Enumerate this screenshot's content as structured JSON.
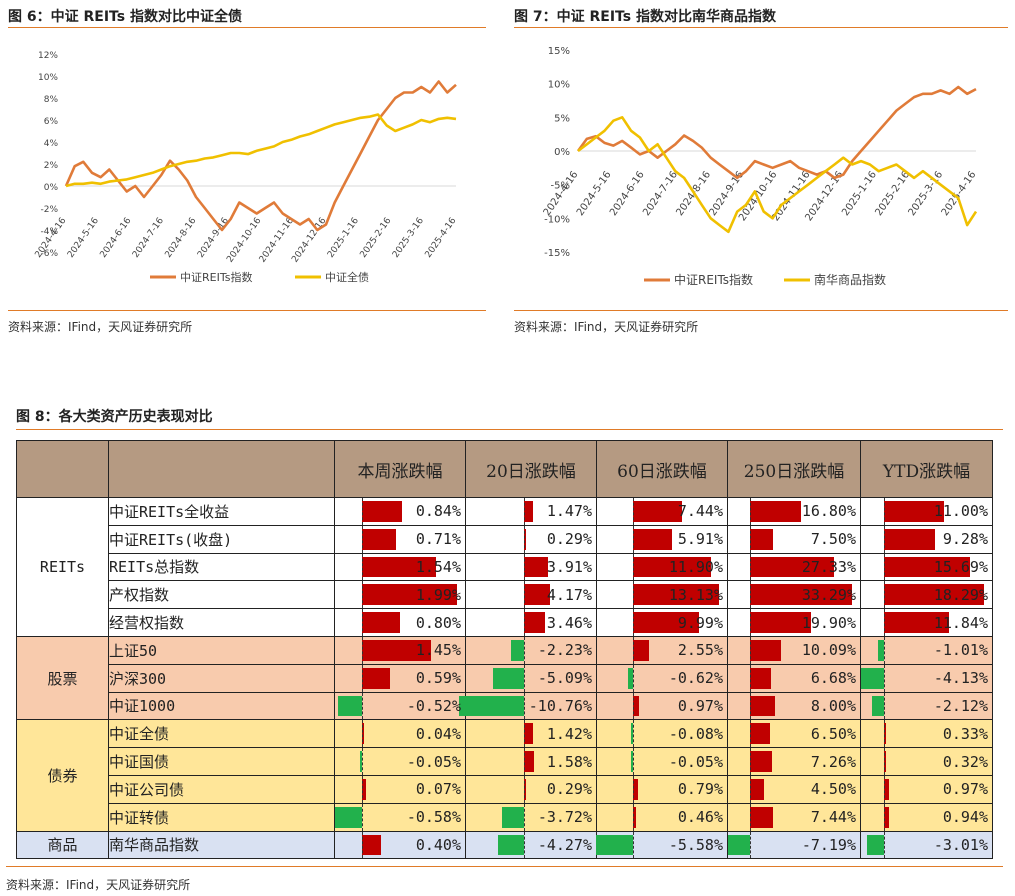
{
  "figure6": {
    "caption": "图 6：中证 REITs 指数对比中证全债",
    "source": "资料来源：IFind，天风证券研究所",
    "chart_data": {
      "type": "line",
      "x_ticks": [
        "2024-4-16",
        "2024-5-16",
        "2024-6-16",
        "2024-7-16",
        "2024-8-16",
        "2024-9-16",
        "2024-10-16",
        "2024-11-16",
        "2024-12-16",
        "2025-1-16",
        "2025-2-16",
        "2025-3-16",
        "2025-4-16"
      ],
      "y_ticks": [
        "12%",
        "10%",
        "8%",
        "6%",
        "4%",
        "2%",
        "0%",
        "-2%",
        "-4%",
        "-6%"
      ],
      "ylim": [
        -6,
        12
      ],
      "series": [
        {
          "name": "中证REITs指数",
          "color": "#e07b39",
          "values": [
            0,
            1.8,
            2.2,
            1.2,
            0.8,
            1.5,
            0.5,
            -0.5,
            0,
            -1,
            0,
            1,
            2.3,
            1.5,
            0.5,
            -1,
            -2,
            -3,
            -4,
            -3,
            -1.5,
            -2,
            -2.5,
            -2,
            -1.5,
            -2.5,
            -3,
            -3.5,
            -3,
            -4,
            -3.5,
            -1.5,
            0,
            1.5,
            3,
            4.5,
            6,
            7,
            8,
            8.5,
            8.5,
            9,
            8.5,
            9.5,
            8.5,
            9.2
          ]
        },
        {
          "name": "中证全债",
          "color": "#f0c000",
          "values": [
            0,
            0.2,
            0.2,
            0.3,
            0.2,
            0.4,
            0.5,
            0.6,
            0.8,
            1,
            1.2,
            1.5,
            1.8,
            2,
            2.2,
            2.3,
            2.5,
            2.6,
            2.8,
            3,
            3,
            2.9,
            3.2,
            3.4,
            3.6,
            4,
            4.2,
            4.5,
            4.7,
            5,
            5.3,
            5.6,
            5.8,
            6,
            6.2,
            6.3,
            6.5,
            5.5,
            5,
            5.3,
            5.6,
            6,
            5.8,
            6.1,
            6.2,
            6.1
          ]
        }
      ]
    }
  },
  "figure7": {
    "caption": "图 7：中证 REITs 指数对比南华商品指数",
    "source": "资料来源：IFind，天风证券研究所",
    "chart_data": {
      "type": "line",
      "x_ticks": [
        "2024-4-16",
        "2024-5-16",
        "2024-6-16",
        "2024-7-16",
        "2024-8-16",
        "2024-9-16",
        "2024-10-16",
        "2024-11-16",
        "2024-12-16",
        "2025-1-16",
        "2025-2-16",
        "2025-3-16",
        "2025-4-16"
      ],
      "y_ticks": [
        "15%",
        "10%",
        "5%",
        "0%",
        "-5%",
        "-10%",
        "-15%"
      ],
      "ylim": [
        -15,
        15
      ],
      "series": [
        {
          "name": "中证REITs指数",
          "color": "#e07b39",
          "values": [
            0,
            1.8,
            2.2,
            1.2,
            0.8,
            1.5,
            0.5,
            -0.5,
            0,
            -1,
            0,
            1,
            2.3,
            1.5,
            0.5,
            -1,
            -2,
            -3,
            -4,
            -3,
            -1.5,
            -2,
            -2.5,
            -2,
            -1.5,
            -2.5,
            -3,
            -3.5,
            -3,
            -4,
            -3.5,
            -1.5,
            0,
            1.5,
            3,
            4.5,
            6,
            7,
            8,
            8.5,
            8.5,
            9,
            8.5,
            9.5,
            8.5,
            9.2
          ]
        },
        {
          "name": "南华商品指数",
          "color": "#f0c000",
          "values": [
            0,
            1,
            2,
            3,
            4.5,
            5,
            3,
            2,
            0,
            1,
            -1,
            -3,
            -4,
            -6,
            -8,
            -10,
            -11,
            -12,
            -9,
            -8,
            -6,
            -9,
            -10,
            -8,
            -7,
            -6,
            -5,
            -4,
            -3,
            -2,
            -1,
            -2,
            -1.5,
            -2,
            -3,
            -2.5,
            -2,
            -3,
            -4,
            -3,
            -4,
            -5,
            -6,
            -7,
            -11,
            -9
          ]
        }
      ]
    }
  },
  "figure8": {
    "caption": "图 8：各大类资产历史表现对比",
    "source": "资料来源：IFind，天风证券研究所",
    "chart_data": {
      "type": "table",
      "columns": [
        "本周涨跌幅",
        "20日涨跌幅",
        "60日涨跌幅",
        "250日涨跌幅",
        "YTD涨跌幅"
      ],
      "groups": [
        {
          "name": "REITs",
          "color": "#ffffff",
          "rows": [
            {
              "name": "中证REITs全收益",
              "values": [
                0.84,
                1.47,
                7.44,
                16.8,
                11.0
              ],
              "text": [
                "0.84%",
                "1.47%",
                "7.44%",
                "16.80%",
                "11.00%"
              ]
            },
            {
              "name": "中证REITs(收盘)",
              "values": [
                0.71,
                0.29,
                5.91,
                7.5,
                9.28
              ],
              "text": [
                "0.71%",
                "0.29%",
                "5.91%",
                "7.50%",
                "9.28%"
              ]
            },
            {
              "name": "REITs总指数",
              "values": [
                1.54,
                3.91,
                11.9,
                27.33,
                15.69
              ],
              "text": [
                "1.54%",
                "3.91%",
                "11.90%",
                "27.33%",
                "15.69%"
              ]
            },
            {
              "name": "产权指数",
              "values": [
                1.99,
                4.17,
                13.13,
                33.29,
                18.29
              ],
              "text": [
                "1.99%",
                "4.17%",
                "13.13%",
                "33.29%",
                "18.29%"
              ]
            },
            {
              "name": "经营权指数",
              "values": [
                0.8,
                3.46,
                9.99,
                19.9,
                11.84
              ],
              "text": [
                "0.80%",
                "3.46%",
                "9.99%",
                "19.90%",
                "11.84%"
              ]
            }
          ]
        },
        {
          "name": "股票",
          "color": "#f8cbad",
          "rows": [
            {
              "name": "上证50",
              "values": [
                1.45,
                -2.23,
                2.55,
                10.09,
                -1.01
              ],
              "text": [
                "1.45%",
                "-2.23%",
                "2.55%",
                "10.09%",
                "-1.01%"
              ]
            },
            {
              "name": "沪深300",
              "values": [
                0.59,
                -5.09,
                -0.62,
                6.68,
                -4.13
              ],
              "text": [
                "0.59%",
                "-5.09%",
                "-0.62%",
                "6.68%",
                "-4.13%"
              ]
            },
            {
              "name": "中证1000",
              "values": [
                -0.52,
                -10.76,
                0.97,
                8.0,
                -2.12
              ],
              "text": [
                "-0.52%",
                "-10.76%",
                "0.97%",
                "8.00%",
                "-2.12%"
              ]
            }
          ]
        },
        {
          "name": "债券",
          "color": "#ffe699",
          "rows": [
            {
              "name": "中证全债",
              "values": [
                0.04,
                1.42,
                -0.08,
                6.5,
                0.33
              ],
              "text": [
                "0.04%",
                "1.42%",
                "-0.08%",
                "6.50%",
                "0.33%"
              ]
            },
            {
              "name": "中证国债",
              "values": [
                -0.05,
                1.58,
                -0.05,
                7.26,
                0.32
              ],
              "text": [
                "-0.05%",
                "1.58%",
                "-0.05%",
                "7.26%",
                "0.32%"
              ]
            },
            {
              "name": "中证公司债",
              "values": [
                0.07,
                0.29,
                0.79,
                4.5,
                0.97
              ],
              "text": [
                "0.07%",
                "0.29%",
                "0.79%",
                "4.50%",
                "0.97%"
              ]
            },
            {
              "name": "中证转债",
              "values": [
                -0.58,
                -3.72,
                0.46,
                7.44,
                0.94
              ],
              "text": [
                "-0.58%",
                "-3.72%",
                "0.46%",
                "7.44%",
                "0.94%"
              ]
            }
          ]
        },
        {
          "name": "商品",
          "color": "#d9e1f2",
          "rows": [
            {
              "name": "南华商品指数",
              "values": [
                0.4,
                -4.27,
                -5.58,
                -7.19,
                -3.01
              ],
              "text": [
                "0.40%",
                "-4.27%",
                "-5.58%",
                "-7.19%",
                "-3.01%"
              ]
            }
          ]
        }
      ],
      "positive_color": "#c00000",
      "negative_color": "#22b14c",
      "header_color": "#b59a82"
    }
  }
}
